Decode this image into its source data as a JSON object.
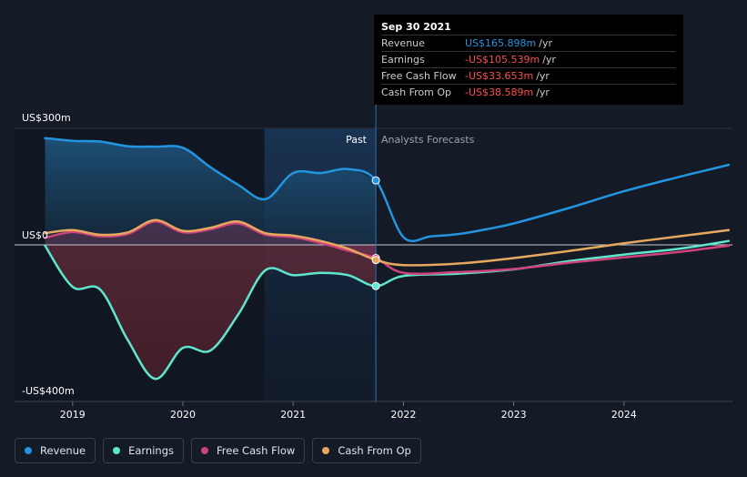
{
  "chart_data": {
    "type": "line",
    "y_axis": {
      "top_label": "US$300m",
      "zero_label": "US$0",
      "bottom_label": "-US$400m",
      "ylim": [
        -400,
        300
      ]
    },
    "x_axis": {
      "ticks": [
        "2019",
        "2020",
        "2021",
        "2022",
        "2023",
        "2024"
      ],
      "xlim": [
        2018.6,
        2024.95
      ]
    },
    "past_label": "Past",
    "forecast_label": "Analysts Forecasts",
    "divider_x": 2021.75,
    "series": [
      {
        "name": "Revenue",
        "color": "#2394df",
        "points": [
          [
            2018.75,
            275
          ],
          [
            2019,
            268
          ],
          [
            2019.25,
            266
          ],
          [
            2019.5,
            254
          ],
          [
            2019.75,
            253
          ],
          [
            2020,
            250
          ],
          [
            2020.25,
            200
          ],
          [
            2020.5,
            155
          ],
          [
            2020.75,
            118
          ],
          [
            2021,
            185
          ],
          [
            2021.25,
            185
          ],
          [
            2021.5,
            195
          ],
          [
            2021.75,
            166
          ],
          [
            2022,
            20
          ],
          [
            2022.25,
            22
          ],
          [
            2022.5,
            28
          ],
          [
            2022.75,
            40
          ],
          [
            2023,
            55
          ],
          [
            2023.5,
            95
          ],
          [
            2024,
            138
          ],
          [
            2024.5,
            175
          ],
          [
            2024.95,
            206
          ]
        ]
      },
      {
        "name": "Earnings",
        "color": "#5ee6cf",
        "points": [
          [
            2018.75,
            -2
          ],
          [
            2019,
            -108
          ],
          [
            2019.25,
            -115
          ],
          [
            2019.5,
            -245
          ],
          [
            2019.75,
            -345
          ],
          [
            2020,
            -265
          ],
          [
            2020.25,
            -272
          ],
          [
            2020.5,
            -180
          ],
          [
            2020.75,
            -65
          ],
          [
            2021,
            -78
          ],
          [
            2021.25,
            -72
          ],
          [
            2021.5,
            -78
          ],
          [
            2021.75,
            -106
          ],
          [
            2022,
            -80
          ],
          [
            2022.5,
            -74
          ],
          [
            2023,
            -63
          ],
          [
            2023.5,
            -42
          ],
          [
            2024,
            -25
          ],
          [
            2024.5,
            -10
          ],
          [
            2024.95,
            10
          ]
        ]
      },
      {
        "name": "Free Cash Flow",
        "color": "#d0427c",
        "points": [
          [
            2018.75,
            18
          ],
          [
            2019,
            33
          ],
          [
            2019.25,
            22
          ],
          [
            2019.5,
            28
          ],
          [
            2019.75,
            60
          ],
          [
            2020,
            32
          ],
          [
            2020.25,
            40
          ],
          [
            2020.5,
            55
          ],
          [
            2020.75,
            26
          ],
          [
            2021,
            20
          ],
          [
            2021.25,
            5
          ],
          [
            2021.5,
            -15
          ],
          [
            2021.75,
            -34
          ],
          [
            2022,
            -72
          ],
          [
            2022.5,
            -70
          ],
          [
            2023,
            -62
          ],
          [
            2023.5,
            -46
          ],
          [
            2024,
            -32
          ],
          [
            2024.5,
            -18
          ],
          [
            2024.95,
            -2
          ]
        ]
      },
      {
        "name": "Cash From Op",
        "color": "#e5a85e",
        "points": [
          [
            2018.75,
            30
          ],
          [
            2019,
            38
          ],
          [
            2019.25,
            26
          ],
          [
            2019.5,
            32
          ],
          [
            2019.75,
            64
          ],
          [
            2020,
            36
          ],
          [
            2020.25,
            44
          ],
          [
            2020.5,
            60
          ],
          [
            2020.75,
            30
          ],
          [
            2021,
            24
          ],
          [
            2021.25,
            10
          ],
          [
            2021.5,
            -10
          ],
          [
            2021.75,
            -39
          ],
          [
            2022,
            -52
          ],
          [
            2022.5,
            -48
          ],
          [
            2023,
            -34
          ],
          [
            2023.5,
            -16
          ],
          [
            2024,
            4
          ],
          [
            2024.5,
            22
          ],
          [
            2024.95,
            38
          ]
        ]
      }
    ]
  },
  "tooltip": {
    "date": "Sep 30 2021",
    "rows": [
      {
        "label": "Revenue",
        "value": "US$165.898m",
        "unit": "/yr",
        "color": "#2394df"
      },
      {
        "label": "Earnings",
        "value": "-US$105.539m",
        "unit": "/yr",
        "color": "#ff4d4d"
      },
      {
        "label": "Free Cash Flow",
        "value": "-US$33.653m",
        "unit": "/yr",
        "color": "#ff4d4d"
      },
      {
        "label": "Cash From Op",
        "value": "-US$38.589m",
        "unit": "/yr",
        "color": "#ff4d4d"
      }
    ]
  },
  "legend": [
    {
      "label": "Revenue",
      "color": "#2394df"
    },
    {
      "label": "Earnings",
      "color": "#5ee6cf"
    },
    {
      "label": "Free Cash Flow",
      "color": "#d0427c"
    },
    {
      "label": "Cash From Op",
      "color": "#e5a85e"
    }
  ]
}
